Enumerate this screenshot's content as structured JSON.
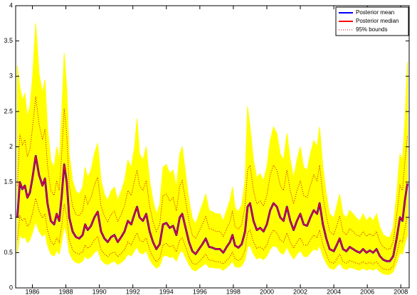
{
  "chart_data": {
    "type": "line",
    "x": [
      1985.1,
      1985.25,
      1985.4,
      1985.55,
      1985.7,
      1985.85,
      1986.0,
      1986.2,
      1986.4,
      1986.6,
      1986.75,
      1986.9,
      1987.1,
      1987.3,
      1987.45,
      1987.6,
      1987.75,
      1987.9,
      1988.05,
      1988.2,
      1988.4,
      1988.6,
      1988.8,
      1989.0,
      1989.15,
      1989.3,
      1989.5,
      1989.7,
      1989.9,
      1990.1,
      1990.3,
      1990.5,
      1990.7,
      1990.9,
      1991.1,
      1991.3,
      1991.5,
      1991.7,
      1991.9,
      1992.1,
      1992.25,
      1992.4,
      1992.6,
      1992.8,
      1993.0,
      1993.2,
      1993.4,
      1993.6,
      1993.8,
      1994.0,
      1994.2,
      1994.4,
      1994.6,
      1994.8,
      1994.95,
      1995.15,
      1995.35,
      1995.55,
      1995.75,
      1995.95,
      1996.15,
      1996.35,
      1996.55,
      1996.75,
      1996.95,
      1997.2,
      1997.4,
      1997.6,
      1997.8,
      1997.95,
      1998.1,
      1998.3,
      1998.5,
      1998.7,
      1998.85,
      1999.0,
      1999.2,
      1999.4,
      1999.6,
      1999.8,
      2000.0,
      2000.2,
      2000.4,
      2000.6,
      2000.8,
      2001.0,
      2001.2,
      2001.4,
      2001.6,
      2001.8,
      2002.0,
      2002.2,
      2002.4,
      2002.6,
      2002.8,
      2003.0,
      2003.15,
      2003.35,
      2003.55,
      2003.75,
      2004.0,
      2004.2,
      2004.35,
      2004.55,
      2004.75,
      2004.95,
      2005.15,
      2005.35,
      2005.55,
      2005.75,
      2005.95,
      2006.15,
      2006.35,
      2006.55,
      2006.75,
      2006.95,
      2007.15,
      2007.35,
      2007.55,
      2007.75,
      2007.95,
      2008.1,
      2008.25,
      2008.4
    ],
    "band": {
      "color": "#ffff00",
      "upper": [
        3.15,
        2.85,
        2.66,
        2.76,
        2.43,
        2.57,
        2.95,
        3.75,
        3.04,
        2.76,
        2.95,
        2.28,
        1.81,
        1.71,
        2.0,
        1.81,
        2.47,
        3.33,
        2.85,
        1.9,
        1.52,
        1.37,
        1.33,
        1.43,
        1.71,
        1.56,
        1.67,
        1.9,
        2.05,
        1.52,
        1.33,
        1.24,
        1.37,
        1.43,
        1.24,
        1.37,
        1.52,
        1.81,
        1.71,
        2.0,
        2.4,
        1.9,
        1.81,
        2.0,
        1.52,
        1.24,
        1.05,
        1.18,
        1.71,
        1.75,
        1.62,
        1.67,
        1.43,
        1.9,
        2.0,
        1.62,
        1.24,
        0.99,
        0.91,
        1.05,
        1.18,
        1.33,
        1.1,
        1.08,
        1.05,
        1.05,
        0.95,
        1.1,
        1.24,
        1.43,
        1.14,
        1.08,
        1.18,
        1.52,
        2.57,
        2.28,
        1.81,
        1.56,
        1.62,
        1.52,
        1.71,
        2.09,
        2.28,
        2.19,
        1.9,
        1.81,
        2.19,
        1.81,
        1.56,
        1.81,
        2.0,
        1.71,
        1.67,
        1.9,
        2.09,
        2.0,
        2.28,
        1.71,
        1.33,
        1.05,
        0.99,
        1.18,
        1.33,
        1.05,
        0.99,
        1.1,
        1.05,
        0.99,
        0.95,
        1.05,
        0.95,
        1.01,
        0.95,
        1.05,
        0.86,
        0.76,
        0.72,
        0.72,
        0.86,
        1.33,
        1.9,
        1.81,
        2.38,
        3.2
      ],
      "lower": [
        0.5,
        0.75,
        0.7,
        0.73,
        0.64,
        0.68,
        0.78,
        0.94,
        0.8,
        0.73,
        0.78,
        0.6,
        0.48,
        0.45,
        0.53,
        0.48,
        0.65,
        0.88,
        0.75,
        0.5,
        0.4,
        0.36,
        0.35,
        0.38,
        0.45,
        0.41,
        0.44,
        0.5,
        0.54,
        0.4,
        0.35,
        0.33,
        0.36,
        0.38,
        0.33,
        0.36,
        0.4,
        0.48,
        0.45,
        0.53,
        0.58,
        0.5,
        0.48,
        0.53,
        0.4,
        0.33,
        0.28,
        0.31,
        0.45,
        0.46,
        0.43,
        0.44,
        0.38,
        0.5,
        0.53,
        0.43,
        0.33,
        0.26,
        0.24,
        0.28,
        0.31,
        0.35,
        0.29,
        0.29,
        0.28,
        0.28,
        0.25,
        0.29,
        0.33,
        0.38,
        0.3,
        0.29,
        0.31,
        0.4,
        0.58,
        0.6,
        0.48,
        0.41,
        0.43,
        0.4,
        0.45,
        0.55,
        0.6,
        0.58,
        0.5,
        0.48,
        0.58,
        0.48,
        0.41,
        0.48,
        0.53,
        0.45,
        0.44,
        0.5,
        0.55,
        0.53,
        0.6,
        0.45,
        0.35,
        0.28,
        0.26,
        0.31,
        0.35,
        0.28,
        0.26,
        0.29,
        0.28,
        0.26,
        0.25,
        0.28,
        0.25,
        0.27,
        0.25,
        0.28,
        0.23,
        0.2,
        0.19,
        0.19,
        0.23,
        0.35,
        0.5,
        0.48,
        0.63,
        0.74
      ]
    },
    "series": [
      {
        "name": "Posterior mean",
        "color": "#0000ff",
        "values": [
          1.0,
          1.5,
          1.4,
          1.45,
          1.28,
          1.35,
          1.55,
          1.87,
          1.6,
          1.45,
          1.55,
          1.2,
          0.95,
          0.9,
          1.05,
          0.95,
          1.3,
          1.75,
          1.5,
          1.0,
          0.8,
          0.72,
          0.7,
          0.75,
          0.9,
          0.82,
          0.88,
          1.0,
          1.08,
          0.8,
          0.7,
          0.65,
          0.72,
          0.75,
          0.65,
          0.72,
          0.8,
          0.95,
          0.9,
          1.05,
          1.15,
          1.0,
          0.95,
          1.05,
          0.8,
          0.65,
          0.55,
          0.62,
          0.9,
          0.92,
          0.85,
          0.88,
          0.75,
          1.0,
          1.05,
          0.85,
          0.65,
          0.52,
          0.48,
          0.55,
          0.62,
          0.7,
          0.58,
          0.57,
          0.55,
          0.55,
          0.5,
          0.58,
          0.65,
          0.75,
          0.6,
          0.57,
          0.62,
          0.8,
          1.15,
          1.2,
          0.95,
          0.82,
          0.85,
          0.8,
          0.9,
          1.1,
          1.2,
          1.15,
          1.0,
          0.95,
          1.15,
          0.95,
          0.82,
          0.95,
          1.05,
          0.9,
          0.88,
          1.0,
          1.1,
          1.05,
          1.2,
          0.9,
          0.7,
          0.55,
          0.52,
          0.62,
          0.7,
          0.55,
          0.52,
          0.58,
          0.55,
          0.52,
          0.5,
          0.55,
          0.5,
          0.53,
          0.5,
          0.55,
          0.45,
          0.4,
          0.38,
          0.38,
          0.45,
          0.7,
          1.0,
          0.95,
          1.25,
          1.48
        ]
      },
      {
        "name": "Posterior median",
        "color": "#ff0000",
        "values": [
          1.0,
          1.5,
          1.4,
          1.45,
          1.28,
          1.35,
          1.55,
          1.87,
          1.6,
          1.45,
          1.55,
          1.2,
          0.95,
          0.9,
          1.05,
          0.95,
          1.3,
          1.75,
          1.5,
          1.0,
          0.8,
          0.72,
          0.7,
          0.75,
          0.9,
          0.82,
          0.88,
          1.0,
          1.08,
          0.8,
          0.7,
          0.65,
          0.72,
          0.75,
          0.65,
          0.72,
          0.8,
          0.95,
          0.9,
          1.05,
          1.15,
          1.0,
          0.95,
          1.05,
          0.8,
          0.65,
          0.55,
          0.62,
          0.9,
          0.92,
          0.85,
          0.88,
          0.75,
          1.0,
          1.05,
          0.85,
          0.65,
          0.52,
          0.48,
          0.55,
          0.62,
          0.7,
          0.58,
          0.57,
          0.55,
          0.55,
          0.5,
          0.58,
          0.65,
          0.75,
          0.6,
          0.57,
          0.62,
          0.8,
          1.15,
          1.2,
          0.95,
          0.82,
          0.85,
          0.8,
          0.9,
          1.1,
          1.2,
          1.15,
          1.0,
          0.95,
          1.15,
          0.95,
          0.82,
          0.95,
          1.05,
          0.9,
          0.88,
          1.0,
          1.1,
          1.05,
          1.2,
          0.9,
          0.7,
          0.55,
          0.52,
          0.62,
          0.7,
          0.55,
          0.52,
          0.58,
          0.55,
          0.52,
          0.5,
          0.55,
          0.5,
          0.53,
          0.5,
          0.55,
          0.45,
          0.4,
          0.38,
          0.38,
          0.45,
          0.7,
          1.0,
          0.95,
          1.25,
          1.48
        ]
      },
      {
        "name": "95% bounds",
        "color": "#cc0000",
        "dotted": true,
        "upper": [
          1.45,
          2.18,
          2.03,
          2.1,
          1.86,
          1.96,
          2.25,
          2.71,
          2.32,
          2.1,
          2.25,
          1.74,
          1.38,
          1.31,
          1.52,
          1.38,
          1.89,
          2.54,
          2.18,
          1.45,
          1.16,
          1.04,
          1.02,
          1.09,
          1.31,
          1.19,
          1.28,
          1.45,
          1.57,
          1.16,
          1.02,
          0.94,
          1.04,
          1.09,
          0.94,
          1.04,
          1.16,
          1.38,
          1.31,
          1.52,
          1.67,
          1.45,
          1.38,
          1.52,
          1.16,
          0.94,
          0.8,
          0.9,
          1.31,
          1.33,
          1.23,
          1.28,
          1.09,
          1.45,
          1.52,
          1.23,
          0.94,
          0.75,
          0.7,
          0.8,
          0.9,
          1.02,
          0.84,
          0.83,
          0.8,
          0.8,
          0.73,
          0.84,
          0.94,
          1.09,
          0.87,
          0.83,
          0.9,
          1.16,
          1.67,
          1.74,
          1.38,
          1.19,
          1.23,
          1.16,
          1.31,
          1.6,
          1.74,
          1.67,
          1.45,
          1.38,
          1.67,
          1.38,
          1.19,
          1.38,
          1.52,
          1.31,
          1.28,
          1.45,
          1.6,
          1.52,
          1.74,
          1.31,
          1.02,
          0.8,
          0.75,
          0.9,
          1.02,
          0.8,
          0.75,
          0.84,
          0.8,
          0.75,
          0.73,
          0.8,
          0.73,
          0.77,
          0.73,
          0.8,
          0.65,
          0.58,
          0.55,
          0.55,
          0.65,
          1.02,
          1.45,
          1.38,
          1.81,
          2.15
        ],
        "lower": [
          0.68,
          1.02,
          0.95,
          0.99,
          0.87,
          0.92,
          1.05,
          1.27,
          1.09,
          0.99,
          1.05,
          0.82,
          0.65,
          0.61,
          0.71,
          0.65,
          0.88,
          1.19,
          1.02,
          0.68,
          0.54,
          0.49,
          0.48,
          0.51,
          0.61,
          0.56,
          0.6,
          0.68,
          0.73,
          0.54,
          0.48,
          0.44,
          0.49,
          0.51,
          0.44,
          0.49,
          0.54,
          0.65,
          0.61,
          0.71,
          0.78,
          0.68,
          0.65,
          0.71,
          0.54,
          0.44,
          0.37,
          0.42,
          0.61,
          0.63,
          0.58,
          0.6,
          0.51,
          0.68,
          0.71,
          0.58,
          0.44,
          0.35,
          0.33,
          0.37,
          0.42,
          0.48,
          0.39,
          0.39,
          0.37,
          0.37,
          0.34,
          0.39,
          0.44,
          0.51,
          0.41,
          0.39,
          0.42,
          0.54,
          0.78,
          0.82,
          0.65,
          0.56,
          0.58,
          0.54,
          0.61,
          0.75,
          0.82,
          0.78,
          0.68,
          0.65,
          0.78,
          0.65,
          0.56,
          0.65,
          0.71,
          0.61,
          0.6,
          0.68,
          0.75,
          0.71,
          0.82,
          0.61,
          0.48,
          0.37,
          0.35,
          0.42,
          0.48,
          0.37,
          0.35,
          0.39,
          0.37,
          0.35,
          0.34,
          0.37,
          0.34,
          0.36,
          0.34,
          0.37,
          0.31,
          0.27,
          0.26,
          0.26,
          0.31,
          0.48,
          0.68,
          0.65,
          0.85,
          1.01
        ]
      }
    ],
    "xlim": [
      1985.0,
      2008.5
    ],
    "xticks": [
      1986,
      1988,
      1990,
      1992,
      1994,
      1996,
      1998,
      2000,
      2002,
      2004,
      2006,
      2008
    ],
    "ylim": [
      0,
      4
    ],
    "yticks": [
      0,
      0.5,
      1,
      1.5,
      2,
      2.5,
      3,
      3.5,
      4
    ],
    "legend": "upper-right"
  }
}
